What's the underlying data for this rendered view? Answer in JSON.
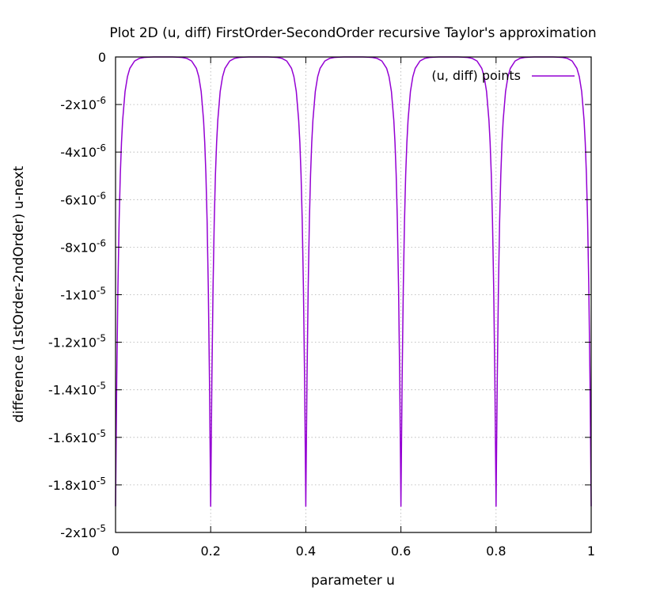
{
  "chart_data": {
    "type": "line",
    "title": "Plot 2D (u, diff) FirstOrder-SecondOrder recursive Taylor's approximation",
    "xlabel": "parameter u",
    "ylabel": "difference (1stOrder-2ndOrder) u-next",
    "xlim": [
      0,
      1
    ],
    "ylim": [
      -2e-05,
      0
    ],
    "grid": true,
    "legend": "top-right",
    "x_ticks": [
      {
        "value": 0,
        "label": "0"
      },
      {
        "value": 0.2,
        "label": "0.2"
      },
      {
        "value": 0.4,
        "label": "0.4"
      },
      {
        "value": 0.6,
        "label": "0.6"
      },
      {
        "value": 0.8,
        "label": "0.8"
      },
      {
        "value": 1,
        "label": "1"
      }
    ],
    "y_ticks": [
      {
        "value": 0,
        "mantissa": "0",
        "exp": ""
      },
      {
        "value": -2e-06,
        "mantissa": "-2x10",
        "exp": "-6"
      },
      {
        "value": -4e-06,
        "mantissa": "-4x10",
        "exp": "-6"
      },
      {
        "value": -6e-06,
        "mantissa": "-6x10",
        "exp": "-6"
      },
      {
        "value": -8e-06,
        "mantissa": "-8x10",
        "exp": "-6"
      },
      {
        "value": -1e-05,
        "mantissa": "-1x10",
        "exp": "-5"
      },
      {
        "value": -1.2e-05,
        "mantissa": "-1.2x10",
        "exp": "-5"
      },
      {
        "value": -1.4e-05,
        "mantissa": "-1.4x10",
        "exp": "-5"
      },
      {
        "value": -1.6e-05,
        "mantissa": "-1.6x10",
        "exp": "-5"
      },
      {
        "value": -1.8e-05,
        "mantissa": "-1.8x10",
        "exp": "-5"
      },
      {
        "value": -2e-05,
        "mantissa": "-2x10",
        "exp": "-5"
      }
    ],
    "series": [
      {
        "name": "(u, diff) points",
        "color": "#9400d3",
        "x": [
          0,
          0.0025,
          0.005,
          0.0075,
          0.01,
          0.0125,
          0.015,
          0.02,
          0.025,
          0.03,
          0.04,
          0.05,
          0.06,
          0.07,
          0.08,
          0.09,
          0.1,
          0.11,
          0.12,
          0.13,
          0.14,
          0.15,
          0.16,
          0.17,
          0.175,
          0.18,
          0.185,
          0.1875,
          0.19,
          0.1925,
          0.195,
          0.1975,
          0.2,
          0.2025,
          0.205,
          0.2075,
          0.21,
          0.2125,
          0.215,
          0.22,
          0.225,
          0.23,
          0.24,
          0.25,
          0.26,
          0.27,
          0.28,
          0.29,
          0.3,
          0.31,
          0.32,
          0.33,
          0.34,
          0.35,
          0.36,
          0.37,
          0.375,
          0.38,
          0.385,
          0.3875,
          0.39,
          0.3925,
          0.395,
          0.3975,
          0.4,
          0.4025,
          0.405,
          0.4075,
          0.41,
          0.4125,
          0.415,
          0.42,
          0.425,
          0.43,
          0.44,
          0.45,
          0.46,
          0.47,
          0.48,
          0.49,
          0.5,
          0.51,
          0.52,
          0.53,
          0.54,
          0.55,
          0.56,
          0.57,
          0.575,
          0.58,
          0.585,
          0.5875,
          0.59,
          0.5925,
          0.595,
          0.5975,
          0.6,
          0.6025,
          0.605,
          0.6075,
          0.61,
          0.6125,
          0.615,
          0.62,
          0.625,
          0.63,
          0.64,
          0.65,
          0.66,
          0.67,
          0.68,
          0.69,
          0.7,
          0.71,
          0.72,
          0.73,
          0.74,
          0.75,
          0.76,
          0.77,
          0.775,
          0.78,
          0.785,
          0.7875,
          0.79,
          0.7925,
          0.795,
          0.7975,
          0.8,
          0.8025,
          0.805,
          0.8075,
          0.81,
          0.8125,
          0.815,
          0.82,
          0.825,
          0.83,
          0.84,
          0.85,
          0.86,
          0.87,
          0.88,
          0.89,
          0.9,
          0.91,
          0.92,
          0.93,
          0.94,
          0.95,
          0.96,
          0.97,
          0.975,
          0.98,
          0.985,
          0.9875,
          0.99,
          0.9925,
          0.995,
          0.9975,
          1
        ],
        "y": [
          -1.89e-05,
          -1.36e-05,
          -9.7e-06,
          -6.9e-06,
          -4.95e-06,
          -3.6e-06,
          -2.65e-06,
          -1.45e-06,
          -8.3e-07,
          -4.8e-07,
          -1.7e-07,
          -6e-08,
          -2e-08,
          -1e-08,
          0,
          0,
          0,
          0,
          0,
          -1e-08,
          -2e-08,
          -6e-08,
          -1.7e-07,
          -4.8e-07,
          -8.3e-07,
          -1.45e-06,
          -2.65e-06,
          -3.6e-06,
          -4.95e-06,
          -6.9e-06,
          -9.7e-06,
          -1.36e-05,
          -1.89e-05,
          -1.36e-05,
          -9.7e-06,
          -6.9e-06,
          -4.95e-06,
          -3.6e-06,
          -2.65e-06,
          -1.45e-06,
          -8.3e-07,
          -4.8e-07,
          -1.7e-07,
          -6e-08,
          -2e-08,
          -1e-08,
          0,
          0,
          0,
          0,
          0,
          -1e-08,
          -2e-08,
          -6e-08,
          -1.7e-07,
          -4.8e-07,
          -8.3e-07,
          -1.45e-06,
          -2.65e-06,
          -3.6e-06,
          -4.95e-06,
          -6.9e-06,
          -9.7e-06,
          -1.36e-05,
          -1.89e-05,
          -1.36e-05,
          -9.7e-06,
          -6.9e-06,
          -4.95e-06,
          -3.6e-06,
          -2.65e-06,
          -1.45e-06,
          -8.3e-07,
          -4.8e-07,
          -1.7e-07,
          -6e-08,
          -2e-08,
          -1e-08,
          0,
          0,
          0,
          0,
          0,
          -1e-08,
          -2e-08,
          -6e-08,
          -1.7e-07,
          -4.8e-07,
          -8.3e-07,
          -1.45e-06,
          -2.65e-06,
          -3.6e-06,
          -4.95e-06,
          -6.9e-06,
          -9.7e-06,
          -1.36e-05,
          -1.89e-05,
          -1.36e-05,
          -9.7e-06,
          -6.9e-06,
          -4.95e-06,
          -3.6e-06,
          -2.65e-06,
          -1.45e-06,
          -8.3e-07,
          -4.8e-07,
          -1.7e-07,
          -6e-08,
          -2e-08,
          -1e-08,
          0,
          0,
          0,
          0,
          0,
          -1e-08,
          -2e-08,
          -6e-08,
          -1.7e-07,
          -4.8e-07,
          -8.3e-07,
          -1.45e-06,
          -2.65e-06,
          -3.6e-06,
          -4.95e-06,
          -6.9e-06,
          -9.7e-06,
          -1.36e-05,
          -1.89e-05,
          -1.36e-05,
          -9.7e-06,
          -6.9e-06,
          -4.95e-06,
          -3.6e-06,
          -2.65e-06,
          -1.45e-06,
          -8.3e-07,
          -4.8e-07,
          -1.7e-07,
          -6e-08,
          -2e-08,
          -1e-08,
          0,
          0,
          0,
          0,
          0,
          -1e-08,
          -2e-08,
          -6e-08,
          -1.7e-07,
          -4.8e-07,
          -8.3e-07,
          -1.45e-06,
          -2.65e-06,
          -3.6e-06,
          -4.95e-06,
          -6.9e-06,
          -9.7e-06,
          -1.36e-05,
          -1.89e-05
        ]
      }
    ]
  }
}
